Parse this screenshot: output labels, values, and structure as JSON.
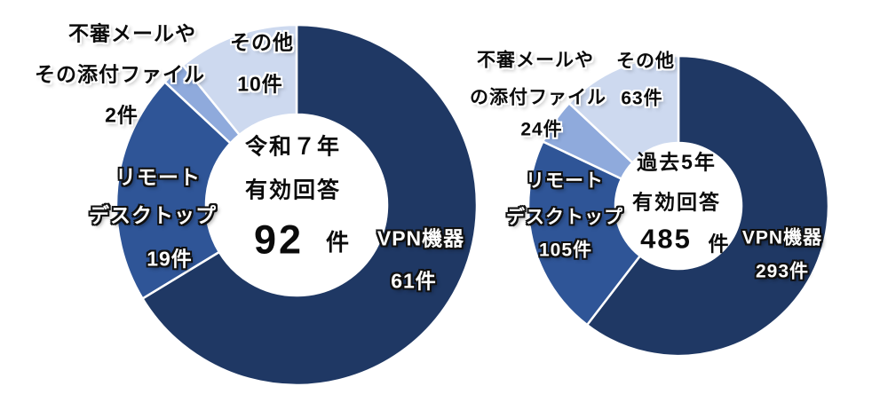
{
  "figure": {
    "background": "#FFFFFF",
    "palette": {
      "vpn": "#1F3864",
      "remote_desktop": "#2F5597",
      "suspicious_mail": "#8FAADC",
      "other": "#CDD9EF",
      "segment_gap": "#FFFFFF"
    }
  },
  "chart_data": [
    {
      "type": "donut",
      "title": "令和７年",
      "subtitle": "有効回答",
      "total": 92,
      "total_label": {
        "value": "92",
        "unit": "件"
      },
      "categories": [
        "VPN機器",
        "リモートデスクトップ",
        "不審メールやその添付ファイル",
        "その他"
      ],
      "values": [
        61,
        19,
        2,
        10
      ],
      "value_labels": [
        "61件",
        "19件",
        "2件",
        "10件"
      ],
      "colors": [
        "#1F3864",
        "#2F5597",
        "#8FAADC",
        "#CDD9EF"
      ],
      "segment_keys": [
        "vpn",
        "remote",
        "mail",
        "other"
      ],
      "start_angle_deg": 0,
      "direction": "clockwise",
      "legend": "none",
      "slice_labels": {
        "vpn": [
          "VPN機器",
          "61件"
        ],
        "remote": [
          "リモート",
          "デスクトップ",
          "19件"
        ],
        "mail": [
          "不審メールや",
          "その添付ファイル",
          "2件"
        ],
        "other": [
          "その他",
          "10件"
        ]
      }
    },
    {
      "type": "donut",
      "title": "過去5年",
      "subtitle": "有効回答",
      "total": 485,
      "total_label": {
        "value": "485",
        "unit": "件"
      },
      "categories": [
        "VPN機器",
        "リモートデスクトップ",
        "不審メールやその添付ファイル",
        "その他"
      ],
      "values": [
        293,
        105,
        24,
        63
      ],
      "value_labels": [
        "293件",
        "105件",
        "24件",
        "63件"
      ],
      "colors": [
        "#1F3864",
        "#2F5597",
        "#8FAADC",
        "#CDD9EF"
      ],
      "segment_keys": [
        "vpn",
        "remote",
        "mail",
        "other"
      ],
      "start_angle_deg": 0,
      "direction": "clockwise",
      "legend": "none",
      "slice_labels": {
        "vpn": [
          "VPN機器",
          "293件"
        ],
        "remote": [
          "リモート",
          "デスクトップ",
          "105件"
        ],
        "mail": [
          "不審メールや",
          "の添付ファイル",
          "24件"
        ],
        "other": [
          "その他",
          "63件"
        ]
      }
    }
  ]
}
